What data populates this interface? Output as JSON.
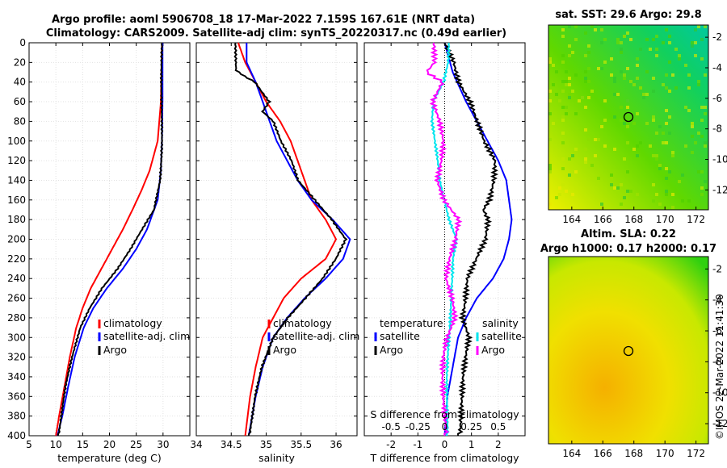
{
  "title": {
    "line1": "Argo profile: aoml 5906708_18 17-Mar-2022 7.159S 167.61E (NRT data)",
    "line2": "Climatology: CARS2009. Satellite-adj clim: synTS_20220317.nc (0.49d earlier)"
  },
  "map_top": {
    "title": "sat. SST: 29.6 Argo: 29.8"
  },
  "map_bottom": {
    "title_line1": "Altim. SLA: 0.22",
    "title_line2": "Argo h1000: 0.17 h2000: 0.17"
  },
  "timestamp": "©IMOS 22-Mar-2022 11:41:30",
  "s_diff_label": "S difference from climatology",
  "colors": {
    "climatology": "#ff0000",
    "satellite": "#0000ff",
    "argo": "#000000",
    "s_sat": "#00e5ee",
    "s_argo": "#ff00ff"
  },
  "chart_data": [
    {
      "type": "line",
      "panel": "temperature",
      "xlabel": "temperature (deg C)",
      "xlim": [
        5,
        35
      ],
      "xticks": [
        5,
        10,
        15,
        20,
        25,
        30
      ],
      "ylim": [
        0,
        400
      ],
      "yticks": [
        0,
        20,
        40,
        60,
        80,
        100,
        120,
        140,
        160,
        180,
        200,
        220,
        240,
        260,
        280,
        300,
        320,
        340,
        360,
        380,
        400
      ],
      "legend": [
        "climatology",
        "satellite-adj. clim",
        "Argo"
      ],
      "series": [
        {
          "name": "climatology",
          "depth": [
            0,
            60,
            100,
            130,
            150,
            170,
            190,
            210,
            230,
            250,
            270,
            290,
            320,
            350,
            380,
            400
          ],
          "values": [
            29.8,
            29.6,
            29.0,
            27.5,
            26.0,
            24.3,
            22.5,
            20.5,
            18.5,
            16.5,
            15.0,
            13.8,
            12.6,
            11.6,
            10.6,
            10.0
          ]
        },
        {
          "name": "satellite-adj. clim",
          "depth": [
            0,
            60,
            100,
            130,
            160,
            190,
            210,
            230,
            250,
            270,
            290,
            320,
            350,
            380,
            400
          ],
          "values": [
            29.9,
            29.9,
            29.8,
            29.6,
            29.0,
            27.0,
            25.0,
            22.5,
            19.5,
            17.0,
            15.2,
            13.5,
            12.3,
            11.2,
            10.3
          ]
        },
        {
          "name": "Argo",
          "depth": [
            0,
            60,
            100,
            140,
            170,
            190,
            210,
            230,
            250,
            270,
            290,
            320,
            350,
            380,
            400
          ],
          "values": [
            29.8,
            29.8,
            29.7,
            29.4,
            28.4,
            26.2,
            24.0,
            21.5,
            18.5,
            16.2,
            14.5,
            13.1,
            11.9,
            11.0,
            10.4
          ]
        }
      ]
    },
    {
      "type": "line",
      "panel": "salinity",
      "xlabel": "salinity",
      "xlim": [
        34,
        36.3
      ],
      "xticks": [
        34,
        34.5,
        35,
        35.5,
        36
      ],
      "ylim": [
        0,
        400
      ],
      "legend": [
        "climatology",
        "satellite-adj. clim",
        "Argo"
      ],
      "series": [
        {
          "name": "climatology",
          "depth": [
            0,
            20,
            40,
            60,
            80,
            100,
            120,
            140,
            160,
            180,
            200,
            220,
            240,
            260,
            280,
            300,
            330,
            360,
            400
          ],
          "values": [
            34.6,
            34.7,
            34.85,
            35.0,
            35.2,
            35.35,
            35.45,
            35.55,
            35.65,
            35.85,
            36.0,
            35.85,
            35.5,
            35.25,
            35.1,
            34.95,
            34.85,
            34.77,
            34.7
          ]
        },
        {
          "name": "satellite-adj. clim",
          "depth": [
            0,
            20,
            40,
            60,
            80,
            100,
            120,
            140,
            160,
            180,
            200,
            220,
            240,
            260,
            280,
            300,
            330,
            360,
            400
          ],
          "values": [
            34.72,
            34.72,
            34.85,
            34.95,
            35.05,
            35.15,
            35.3,
            35.45,
            35.65,
            35.95,
            36.2,
            36.1,
            35.85,
            35.55,
            35.3,
            35.1,
            34.95,
            34.85,
            34.75
          ]
        },
        {
          "name": "Argo",
          "depth": [
            0,
            28,
            34,
            40,
            60,
            70,
            80,
            100,
            120,
            140,
            160,
            180,
            200,
            220,
            240,
            260,
            280,
            300,
            330,
            360,
            400
          ],
          "values": [
            34.56,
            34.58,
            34.7,
            34.85,
            35.05,
            34.95,
            35.1,
            35.2,
            35.35,
            35.45,
            35.7,
            35.95,
            36.15,
            36.0,
            35.8,
            35.55,
            35.3,
            35.1,
            34.95,
            34.85,
            34.75
          ]
        }
      ]
    },
    {
      "type": "line",
      "panel": "differences",
      "xlabel": "T difference from climatology",
      "xlim": [
        -3,
        3
      ],
      "xticks": [
        -2,
        -1,
        0,
        1,
        2
      ],
      "s_xticks": [
        -0.5,
        -0.25,
        0,
        0.25,
        0.5
      ],
      "s_tick_labels": [
        "-0.5",
        "-0.25",
        "0",
        "0.25",
        "0.5"
      ],
      "ylim": [
        0,
        400
      ],
      "legend": {
        "temperature": "temperature",
        "salinity": "salinity",
        "satellite": "satellite",
        "argo": "Argo"
      },
      "series": [
        {
          "name": "T satellite",
          "depth": [
            0,
            30,
            60,
            80,
            100,
            120,
            140,
            160,
            180,
            200,
            220,
            240,
            260,
            280,
            300,
            330,
            360,
            400
          ],
          "values": [
            0.0,
            0.3,
            0.8,
            1.2,
            1.6,
            2.0,
            2.3,
            2.4,
            2.5,
            2.4,
            2.2,
            1.8,
            1.2,
            0.8,
            0.5,
            0.3,
            0.1,
            0.0
          ]
        },
        {
          "name": "T Argo",
          "depth": [
            0,
            20,
            40,
            60,
            80,
            100,
            120,
            140,
            160,
            170,
            180,
            200,
            210,
            240,
            280,
            300,
            330,
            360,
            400
          ],
          "values": [
            0.0,
            0.4,
            0.6,
            1.0,
            1.2,
            1.4,
            1.8,
            1.8,
            1.7,
            1.5,
            1.7,
            1.6,
            1.4,
            0.8,
            0.6,
            0.9,
            0.8,
            0.7,
            0.5
          ]
        },
        {
          "name": "S satellite",
          "depth": [
            0,
            20,
            40,
            60,
            80,
            100,
            140,
            160,
            180,
            200,
            220,
            260,
            300,
            340,
            400
          ],
          "values": [
            0.04,
            0.04,
            0.0,
            -0.1,
            -0.12,
            -0.1,
            -0.05,
            0.0,
            0.05,
            0.12,
            0.08,
            0.05,
            0.04,
            0.03,
            0.02
          ]
        },
        {
          "name": "S Argo",
          "depth": [
            0,
            20,
            30,
            40,
            50,
            60,
            80,
            100,
            120,
            140,
            160,
            180,
            200,
            220,
            240,
            260,
            280,
            300,
            320,
            400
          ],
          "values": [
            -0.1,
            -0.08,
            -0.15,
            0.0,
            -0.05,
            -0.1,
            -0.05,
            -0.03,
            -0.05,
            -0.08,
            0.0,
            0.15,
            0.12,
            0.05,
            0.0,
            0.05,
            0.08,
            0.02,
            0.0,
            0.0
          ]
        }
      ]
    },
    {
      "type": "heatmap",
      "panel": "sst_map",
      "title": "sat. SST: 29.6 Argo: 29.8",
      "xticks": [
        164,
        166,
        168,
        170,
        172
      ],
      "yticks": [
        -2,
        -4,
        -6,
        -8,
        -10,
        -12
      ],
      "xlim": [
        162.5,
        172.8
      ],
      "ylim": [
        -13.3,
        -1.2
      ],
      "argo_position": [
        167.61,
        -7.159
      ]
    },
    {
      "type": "heatmap",
      "panel": "sla_map",
      "title": "Altim. SLA: 0.22 / Argo h1000: 0.17 h2000: 0.17",
      "xticks": [
        164,
        166,
        168,
        170,
        172
      ],
      "yticks": [
        -2,
        -4,
        -6,
        -8,
        -10,
        -12
      ],
      "xlim": [
        162.5,
        172.8
      ],
      "ylim": [
        -13.3,
        -1.2
      ],
      "argo_position": [
        167.61,
        -7.159
      ]
    }
  ]
}
